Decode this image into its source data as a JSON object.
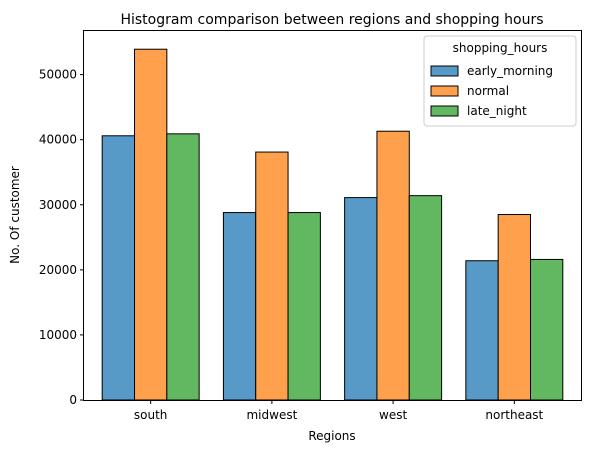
{
  "chart_data": {
    "type": "bar",
    "title": "Histogram comparison between regions and shopping hours",
    "xlabel": "Regions",
    "ylabel": "No. Of customer",
    "categories": [
      "south",
      "midwest",
      "west",
      "northeast"
    ],
    "series": [
      {
        "name": "early_morning",
        "color": "#5799c7",
        "values": [
          40600,
          28800,
          31100,
          21400
        ]
      },
      {
        "name": "normal",
        "color": "#ffa04c",
        "values": [
          53900,
          38100,
          41300,
          28500
        ]
      },
      {
        "name": "late_night",
        "color": "#61b861",
        "values": [
          40900,
          28800,
          31400,
          21600
        ]
      }
    ],
    "ylim": [
      0,
      56700
    ],
    "yticks": [
      0,
      10000,
      20000,
      30000,
      40000,
      50000
    ],
    "grid": false,
    "legend": {
      "title": "shopping_hours",
      "placement": "top-right"
    }
  }
}
